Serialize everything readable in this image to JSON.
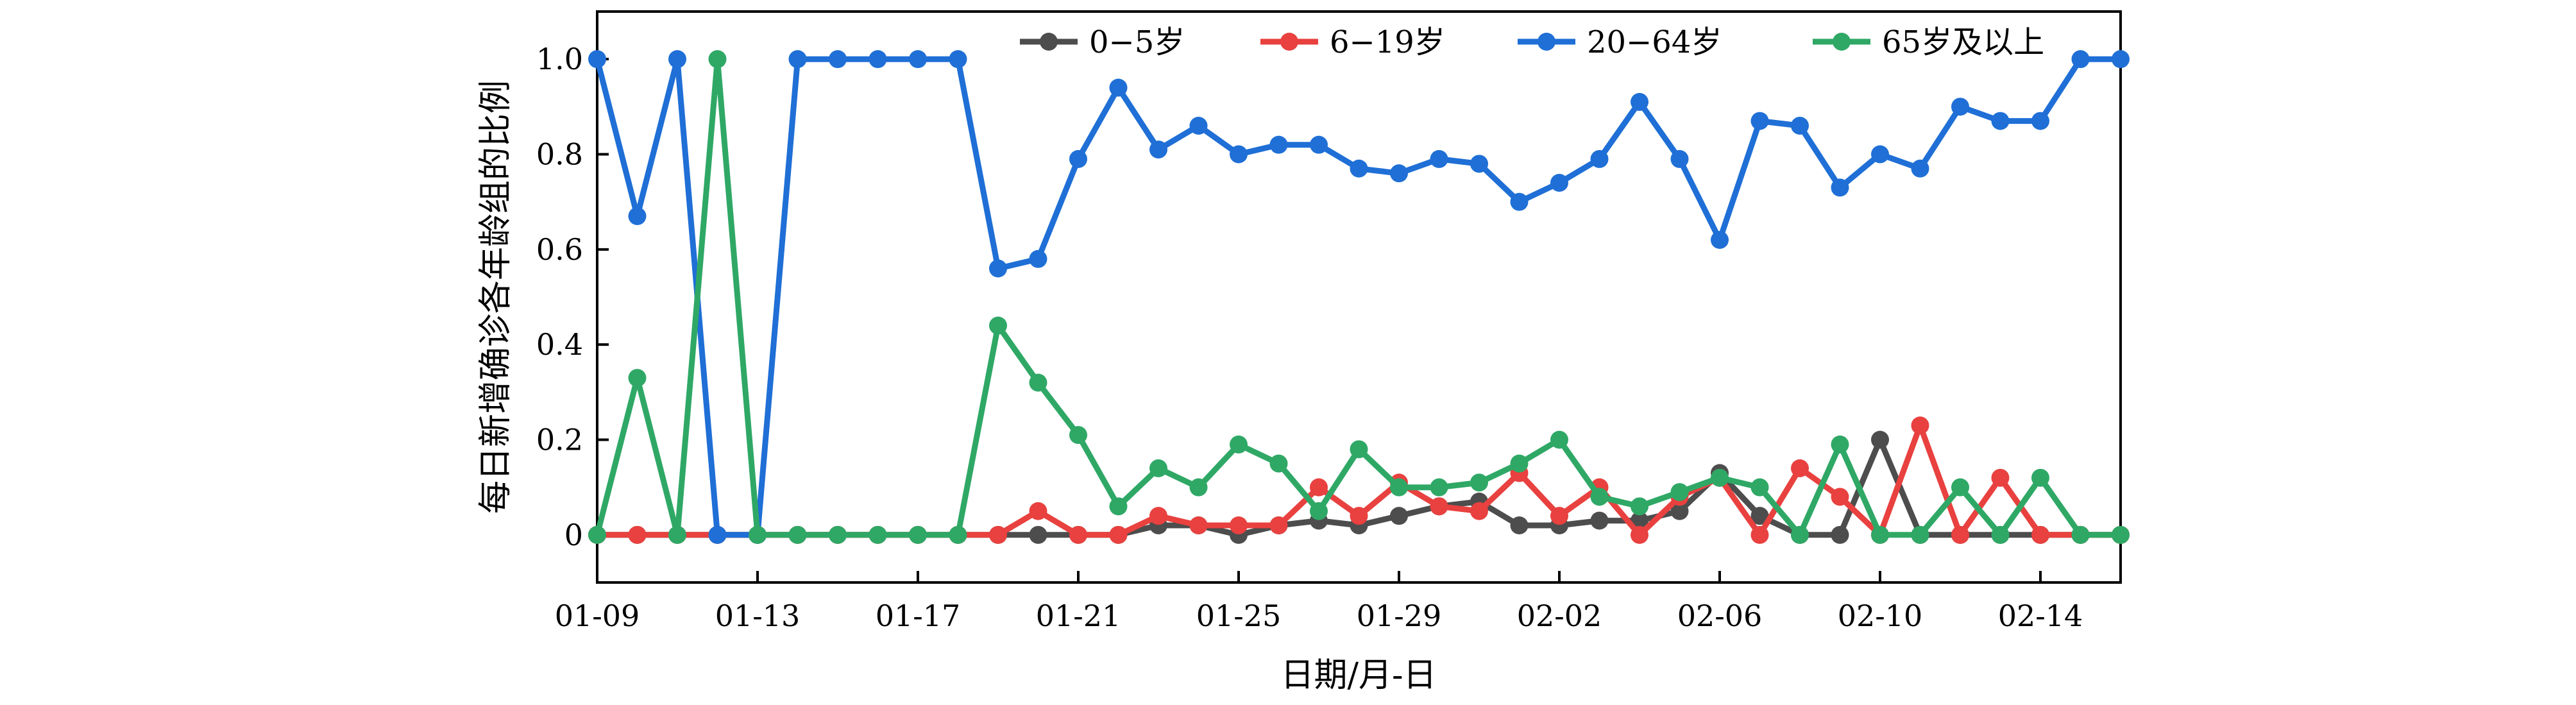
{
  "chart_data": {
    "type": "line",
    "title": "",
    "xlabel": "日期/月-日",
    "ylabel": "每日新增确诊各年龄组的比例",
    "x": [
      "01-09",
      "01-10",
      "01-11",
      "01-12",
      "01-13",
      "01-14",
      "01-15",
      "01-16",
      "01-17",
      "01-18",
      "01-19",
      "01-20",
      "01-21",
      "01-22",
      "01-23",
      "01-24",
      "01-25",
      "01-26",
      "01-27",
      "01-28",
      "01-29",
      "01-30",
      "01-31",
      "02-01",
      "02-02",
      "02-03",
      "02-04",
      "02-05",
      "02-06",
      "02-07",
      "02-08",
      "02-09",
      "02-10",
      "02-11",
      "02-12",
      "02-13",
      "02-14",
      "02-15",
      "02-16"
    ],
    "x_ticks": [
      "01-09",
      "01-13",
      "01-17",
      "01-21",
      "01-25",
      "01-29",
      "02-02",
      "02-06",
      "02-10",
      "02-14"
    ],
    "y_ticks": [
      "0",
      "0.2",
      "0.4",
      "0.6",
      "0.8",
      "1.0"
    ],
    "ylim": [
      -0.1,
      1.1
    ],
    "legend_position": "top-right",
    "grid": false,
    "series": [
      {
        "name": "0−5岁",
        "color": "#4d4d4d",
        "values": [
          0,
          0,
          0,
          0,
          0,
          0,
          0,
          0,
          0,
          0,
          0,
          0,
          0,
          0,
          0.02,
          0.02,
          0,
          0.02,
          0.03,
          0.02,
          0.04,
          0.06,
          0.07,
          0.02,
          0.02,
          0.03,
          0.03,
          0.05,
          0.13,
          0.04,
          0,
          0,
          0.2,
          0,
          0,
          0,
          0,
          0,
          0
        ]
      },
      {
        "name": "6−19岁",
        "color": "#e8413f",
        "values": [
          0,
          0,
          0,
          0,
          0,
          0,
          0,
          0,
          0,
          0,
          0,
          0.05,
          0,
          0,
          0.04,
          0.02,
          0.02,
          0.02,
          0.1,
          0.04,
          0.11,
          0.06,
          0.05,
          0.13,
          0.04,
          0.1,
          0,
          0.08,
          0.12,
          0,
          0.14,
          0.08,
          0,
          0.23,
          0,
          0.12,
          0,
          0,
          0
        ]
      },
      {
        "name": "20−64岁",
        "color": "#1f6fd6",
        "values": [
          1.0,
          0.67,
          1.0,
          0,
          0,
          1.0,
          1.0,
          1.0,
          1.0,
          1.0,
          0.56,
          0.58,
          0.79,
          0.94,
          0.81,
          0.86,
          0.8,
          0.82,
          0.82,
          0.77,
          0.76,
          0.79,
          0.78,
          0.7,
          0.74,
          0.79,
          0.91,
          0.79,
          0.62,
          0.87,
          0.86,
          0.73,
          0.8,
          0.77,
          0.9,
          0.87,
          0.87,
          1.0,
          1.0
        ]
      },
      {
        "name": "65岁及以上",
        "color": "#2fa866",
        "values": [
          0,
          0.33,
          0,
          1.0,
          0,
          0,
          0,
          0,
          0,
          0,
          0.44,
          0.32,
          0.21,
          0.06,
          0.14,
          0.1,
          0.19,
          0.15,
          0.05,
          0.18,
          0.1,
          0.1,
          0.11,
          0.15,
          0.2,
          0.08,
          0.06,
          0.09,
          0.12,
          0.1,
          0,
          0.19,
          0,
          0,
          0.1,
          0,
          0.12,
          0,
          0
        ]
      }
    ]
  }
}
